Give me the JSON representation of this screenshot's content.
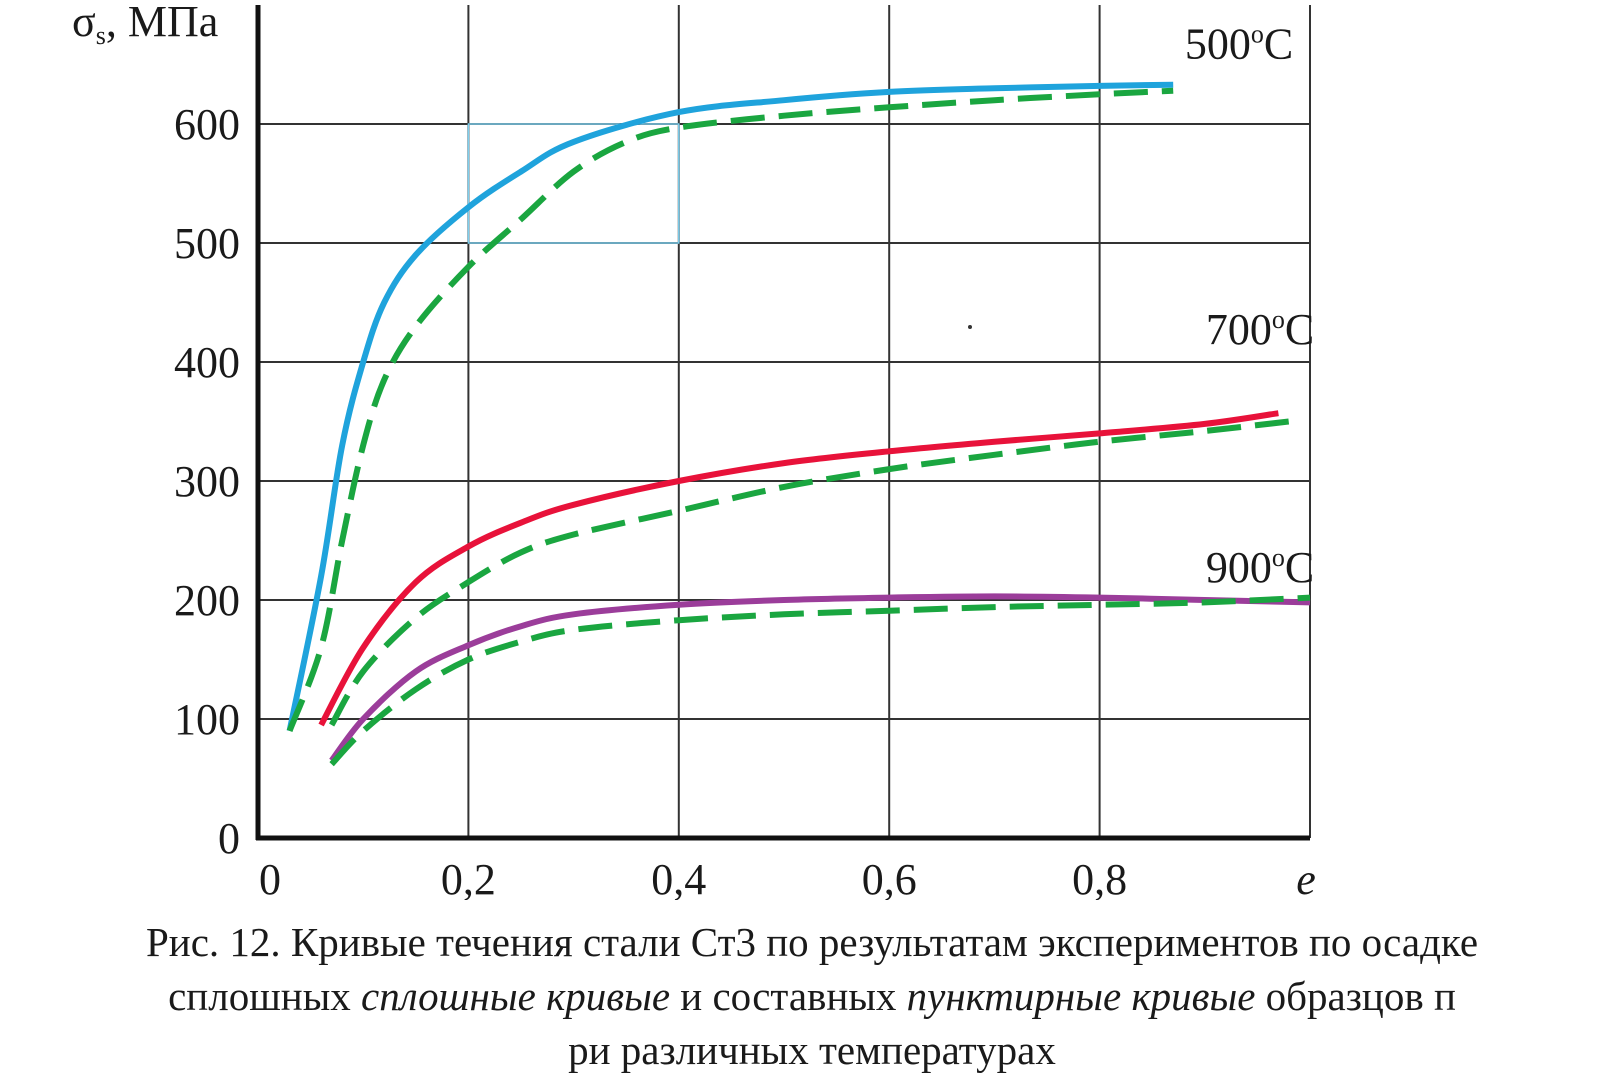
{
  "chart_data": {
    "type": "line",
    "ylabel": "σ",
    "ylabel_sub": "s",
    "ylabel_unit": ", МПа",
    "xlabel": "e",
    "xlim": [
      0,
      1.0
    ],
    "ylim": [
      0,
      700
    ],
    "x_ticks": [
      0,
      0.2,
      0.4,
      0.6,
      0.8
    ],
    "x_tick_labels": [
      "0",
      "0,2",
      "0,4",
      "0,6",
      "0,8"
    ],
    "y_ticks": [
      0,
      100,
      200,
      300,
      400,
      500,
      600
    ],
    "y_tick_labels": [
      "0",
      "100",
      "200",
      "300",
      "400",
      "500",
      "600"
    ],
    "grid": true,
    "annotations": [
      {
        "text": "500",
        "sup": "o",
        "suffix": "C",
        "x": 0.87,
        "y": 655
      },
      {
        "text": "700",
        "sup": "o",
        "suffix": "C",
        "x": 0.89,
        "y": 415
      },
      {
        "text": "900",
        "sup": "o",
        "suffix": "C",
        "x": 0.89,
        "y": 215
      }
    ],
    "highlight_box": {
      "x": [
        0.2,
        0.4
      ],
      "y": [
        500,
        600
      ],
      "color": "#7ecfee"
    },
    "series": [
      {
        "group": "500",
        "style": "solid",
        "color": "#1fa3dc",
        "x": [
          0.03,
          0.06,
          0.08,
          0.1,
          0.12,
          0.15,
          0.2,
          0.25,
          0.3,
          0.4,
          0.5,
          0.6,
          0.7,
          0.8,
          0.87
        ],
        "y": [
          90,
          220,
          330,
          400,
          450,
          490,
          530,
          560,
          585,
          610,
          620,
          627,
          630,
          632,
          633
        ]
      },
      {
        "group": "500",
        "style": "dashed",
        "color": "#1aa640",
        "x": [
          0.03,
          0.06,
          0.08,
          0.1,
          0.12,
          0.15,
          0.2,
          0.25,
          0.3,
          0.35,
          0.4,
          0.5,
          0.6,
          0.7,
          0.8,
          0.87
        ],
        "y": [
          90,
          160,
          250,
          330,
          385,
          430,
          480,
          520,
          560,
          585,
          597,
          607,
          614,
          620,
          625,
          628
        ]
      },
      {
        "group": "700",
        "style": "solid",
        "color": "#e8123a",
        "x": [
          0.06,
          0.1,
          0.15,
          0.2,
          0.25,
          0.3,
          0.4,
          0.5,
          0.6,
          0.7,
          0.8,
          0.9,
          0.97
        ],
        "y": [
          95,
          160,
          215,
          245,
          265,
          280,
          300,
          315,
          325,
          333,
          340,
          348,
          357
        ]
      },
      {
        "group": "700",
        "style": "dashed",
        "color": "#1aa640",
        "x": [
          0.07,
          0.1,
          0.15,
          0.2,
          0.25,
          0.3,
          0.4,
          0.5,
          0.6,
          0.7,
          0.8,
          0.9,
          0.98
        ],
        "y": [
          95,
          140,
          185,
          215,
          240,
          255,
          275,
          295,
          310,
          322,
          333,
          342,
          350
        ]
      },
      {
        "group": "900",
        "style": "solid",
        "color": "#9b3d9a",
        "x": [
          0.07,
          0.1,
          0.15,
          0.2,
          0.25,
          0.3,
          0.4,
          0.5,
          0.6,
          0.7,
          0.8,
          0.9,
          1.0
        ],
        "y": [
          65,
          100,
          140,
          162,
          178,
          188,
          196,
          200,
          202,
          203,
          202,
          200,
          198
        ]
      },
      {
        "group": "900",
        "style": "dashed",
        "color": "#1aa640",
        "x": [
          0.07,
          0.1,
          0.15,
          0.2,
          0.25,
          0.3,
          0.4,
          0.5,
          0.6,
          0.7,
          0.8,
          0.9,
          1.0
        ],
        "y": [
          62,
          90,
          125,
          150,
          165,
          175,
          183,
          188,
          191,
          194,
          196,
          198,
          202
        ]
      }
    ]
  },
  "caption": {
    "line1": "Рис. 12. Кривые течения стали Ст3 по результатам экспериментов по осадке",
    "line2_a": "сплошных ",
    "line2_b": "сплошные кривые",
    "line2_c": " и составных ",
    "line2_d": "пунктирные кривые",
    "line2_e": " образцов п",
    "line3": "ри различных температурах"
  }
}
